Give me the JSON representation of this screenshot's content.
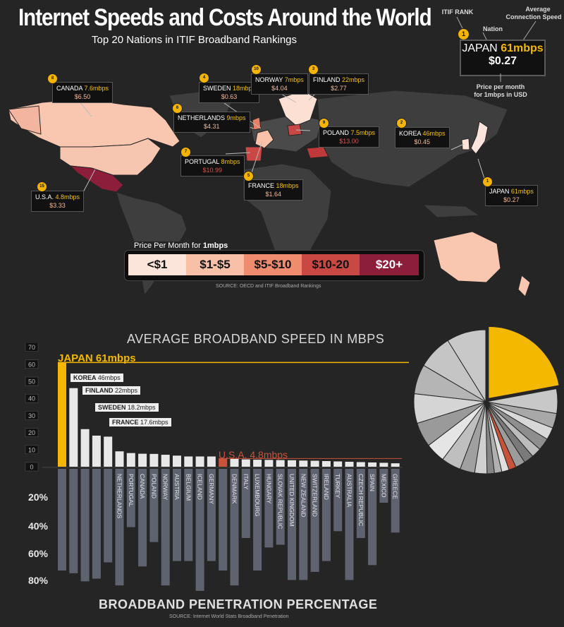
{
  "header": {
    "title": "Internet Speeds and Costs Around the World",
    "subtitle": "Top 20 Nations in ITIF Broadband Rankings"
  },
  "key": {
    "itif_rank_label": "ITIF RANK",
    "nation_label": "Nation",
    "speed_label_1": "Average",
    "speed_label_2": "Connection Speed",
    "rank": "1",
    "nation": "JAPAN",
    "speed": "61mbps",
    "price": "$0.27",
    "price_label_1": "Price per month",
    "price_label_2": "for 1mbps in USD"
  },
  "map_callouts": [
    {
      "rank": "8",
      "nation": "CANADA",
      "speed": "7.6mbps",
      "price": "$6.50"
    },
    {
      "rank": "4",
      "nation": "SWEDEN",
      "speed": "18mbps",
      "price": "$0.63"
    },
    {
      "rank": "10",
      "nation": "NORWAY",
      "speed": "7mbps",
      "price": "$4.04"
    },
    {
      "rank": "3",
      "nation": "FINLAND",
      "speed": "22mbps",
      "price": "$2.77"
    },
    {
      "rank": "6",
      "nation": "NETHERLANDS",
      "speed": "9mbps",
      "price": "$4.31"
    },
    {
      "rank": "9",
      "nation": "POLAND",
      "speed": "7.5mbps",
      "price": "$13.00"
    },
    {
      "rank": "2",
      "nation": "KOREA",
      "speed": "46mbps",
      "price": "$0.45"
    },
    {
      "rank": "7",
      "nation": "PORTUGAL",
      "speed": "8mbps",
      "price": "$10.99"
    },
    {
      "rank": "5",
      "nation": "FRANCE",
      "speed": "18mbps",
      "price": "$1.64"
    },
    {
      "rank": "15",
      "nation": "U.S.A.",
      "speed": "4.8mbps",
      "price": "$3.33"
    },
    {
      "rank": "1",
      "nation": "JAPAN",
      "speed": "61mbps",
      "price": "$0.27"
    }
  ],
  "legend": {
    "title_prefix": "Price Per Month for ",
    "title_bold": "1mbps",
    "items": [
      {
        "label": "<$1",
        "color": "#fbe4da",
        "text": "#111"
      },
      {
        "label": "$1-$5",
        "color": "#f8c0a6",
        "text": "#111"
      },
      {
        "label": "$5-$10",
        "color": "#ef8c6d",
        "text": "#111"
      },
      {
        "label": "$10-20",
        "color": "#c94844",
        "text": "#111"
      },
      {
        "label": "$20+",
        "color": "#8c1e3a",
        "text": "#fff"
      }
    ],
    "source": "SOURCE: OECD and ITIF Broadband Rankings"
  },
  "speed_chart": {
    "title": "AVERAGE BROADBAND SPEED IN MBPS",
    "annotations": [
      {
        "name": "JAPAN",
        "value": "61mbps"
      },
      {
        "name": "KOREA",
        "value": "46mbps"
      },
      {
        "name": "FINLAND",
        "value": "22mbps"
      },
      {
        "name": "SWEDEN",
        "value": "18.2mbps"
      },
      {
        "name": "FRANCE",
        "value": "17.6mbps"
      },
      {
        "name": "U.S.A.",
        "value": "4.8mbps"
      }
    ]
  },
  "penetration_chart": {
    "title": "BROADBAND PENETRATION PERCENTAGE",
    "source": "SOURCE: Internet World Stats Broadband Penetration"
  },
  "colors": {
    "background": "#262525",
    "japan": "#f5b800",
    "usa": "#c8523a",
    "bar": "#e8e8e8",
    "penetration": "#5f6370"
  },
  "chart_data": [
    {
      "type": "bar",
      "title": "AVERAGE BROADBAND SPEED IN MBPS",
      "ylim": [
        0,
        70
      ],
      "yticks": [
        0,
        10,
        20,
        30,
        40,
        50,
        60,
        70
      ],
      "categories": [
        "JAPAN",
        "KOREA",
        "FINLAND",
        "SWEDEN",
        "FRANCE",
        "NETHERLANDS",
        "PORTUGAL",
        "CANADA",
        "POLAND",
        "NORWAY",
        "AUSTRIA",
        "BELGIUM",
        "ICELAND",
        "GERMANY",
        "U.S.A.",
        "DENMARK",
        "ITALY",
        "LUXEMBOURG",
        "HUNGARY",
        "SLOVAK REPUBLIC",
        "UNITED KINGDOM",
        "NEW ZEALAND",
        "SWITZERLAND",
        "IRELAND",
        "TURKEY",
        "AUSTRALIA",
        "CZECH REPUBLIC",
        "SPAIN",
        "MEXICO",
        "GREECE"
      ],
      "values": [
        61,
        46,
        22,
        18.2,
        17.6,
        9,
        8,
        7.6,
        7.5,
        7,
        6.5,
        6,
        6,
        6,
        4.8,
        4.6,
        4.3,
        4.1,
        4,
        3.9,
        3.8,
        3.6,
        3.5,
        3.3,
        3.1,
        2.9,
        2.7,
        2.5,
        2.3,
        2
      ]
    },
    {
      "type": "bar",
      "title": "BROADBAND PENETRATION PERCENTAGE",
      "yticks": [
        "20%",
        "40%",
        "60%",
        "80%"
      ],
      "ylim": [
        0,
        90
      ],
      "categories": [
        "JAPAN",
        "KOREA",
        "FINLAND",
        "SWEDEN",
        "FRANCE",
        "NETHERLANDS",
        "PORTUGAL",
        "CANADA",
        "POLAND",
        "NORWAY",
        "AUSTRIA",
        "BELGIUM",
        "ICELAND",
        "GERMANY",
        "U.S.A.",
        "DENMARK",
        "ITALY",
        "LUXEMBOURG",
        "HUNGARY",
        "SLOVAK REPUBLIC",
        "UNITED KINGDOM",
        "NEW ZEALAND",
        "SWITZERLAND",
        "IRELAND",
        "TURKEY",
        "AUSTRALIA",
        "CZECH REPUBLIC",
        "SPAIN",
        "MEXICO",
        "GREECE"
      ],
      "values": [
        75,
        77,
        83,
        81,
        69,
        86,
        43,
        72,
        54,
        86,
        68,
        68,
        90,
        68,
        75,
        86,
        51,
        75,
        58,
        56,
        82,
        82,
        76,
        68,
        46,
        82,
        51,
        71,
        25,
        47
      ]
    },
    {
      "type": "pie",
      "values": [
        20,
        5,
        3,
        2.5,
        2.5,
        2,
        2,
        2,
        1.5,
        1.5,
        1.5,
        1.5,
        2.5,
        3,
        4,
        4,
        5,
        6,
        6,
        7,
        8
      ]
    }
  ]
}
